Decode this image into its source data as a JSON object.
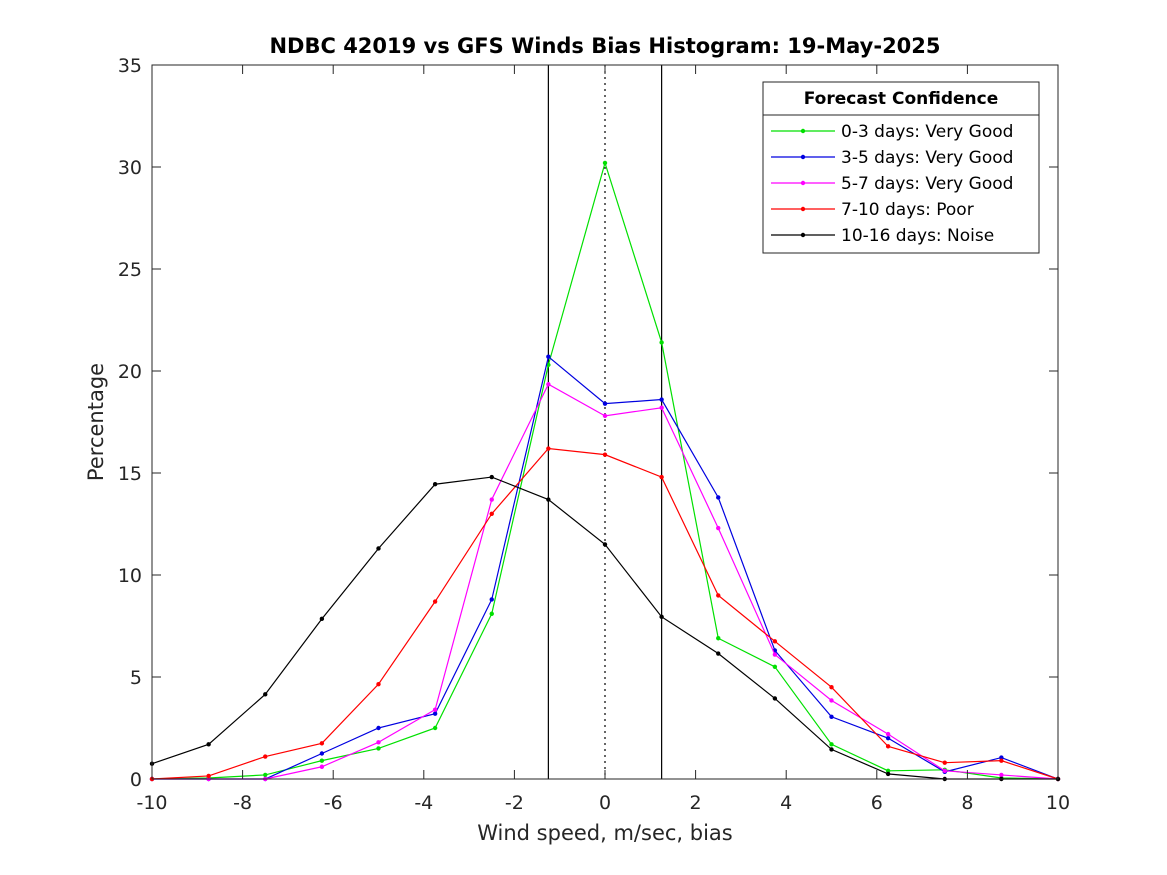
{
  "chart_data": {
    "type": "line",
    "title": "NDBC 42019 vs GFS Winds Bias Histogram: 19-May-2025",
    "xlabel": "Wind speed, m/sec, bias",
    "ylabel": "Percentage",
    "xlim": [
      -10,
      10
    ],
    "ylim": [
      0,
      35
    ],
    "xticks": [
      -10,
      -8,
      -6,
      -4,
      -2,
      0,
      2,
      4,
      6,
      8,
      10
    ],
    "yticks": [
      0,
      5,
      10,
      15,
      20,
      25,
      30,
      35
    ],
    "grid": false,
    "legend": {
      "title": "Forecast Confidence",
      "placement": "top-right"
    },
    "vertical_lines": [
      {
        "x": -1.25,
        "style": "solid"
      },
      {
        "x": 0,
        "style": "dotted"
      },
      {
        "x": 1.25,
        "style": "solid"
      }
    ],
    "x": [
      -10,
      -8.75,
      -7.5,
      -6.25,
      -5,
      -3.75,
      -2.5,
      -1.25,
      0,
      1.25,
      2.5,
      3.75,
      5,
      6.25,
      7.5,
      8.75,
      10
    ],
    "series": [
      {
        "name": "0-3 days: Very Good",
        "color": "#00e000",
        "values": [
          0,
          0.05,
          0.2,
          0.9,
          1.5,
          2.5,
          8.1,
          20.3,
          30.2,
          21.4,
          6.9,
          5.5,
          1.7,
          0.4,
          0.45,
          0.05,
          0
        ]
      },
      {
        "name": "3-5 days: Very Good",
        "color": "#0000e0",
        "values": [
          0,
          0,
          0,
          1.25,
          2.5,
          3.2,
          8.8,
          20.7,
          18.4,
          18.6,
          13.8,
          6.3,
          3.05,
          2.0,
          0.35,
          1.05,
          0
        ]
      },
      {
        "name": "5-7 days: Very Good",
        "color": "#ff00ff",
        "values": [
          0,
          0,
          0,
          0.6,
          1.8,
          3.4,
          13.7,
          19.35,
          17.8,
          18.2,
          12.3,
          6.1,
          3.85,
          2.2,
          0.4,
          0.2,
          0
        ]
      },
      {
        "name": "7-10 days: Poor",
        "color": "#ff0000",
        "values": [
          0,
          0.15,
          1.1,
          1.75,
          4.65,
          8.7,
          13.0,
          16.2,
          15.9,
          14.8,
          9.0,
          6.75,
          4.5,
          1.6,
          0.8,
          0.9,
          0
        ]
      },
      {
        "name": "10-16 days: Noise",
        "color": "#000000",
        "values": [
          0.75,
          1.7,
          4.15,
          7.85,
          11.3,
          14.45,
          14.8,
          13.7,
          11.5,
          7.95,
          6.15,
          3.95,
          1.45,
          0.25,
          0,
          0,
          0
        ]
      }
    ]
  }
}
